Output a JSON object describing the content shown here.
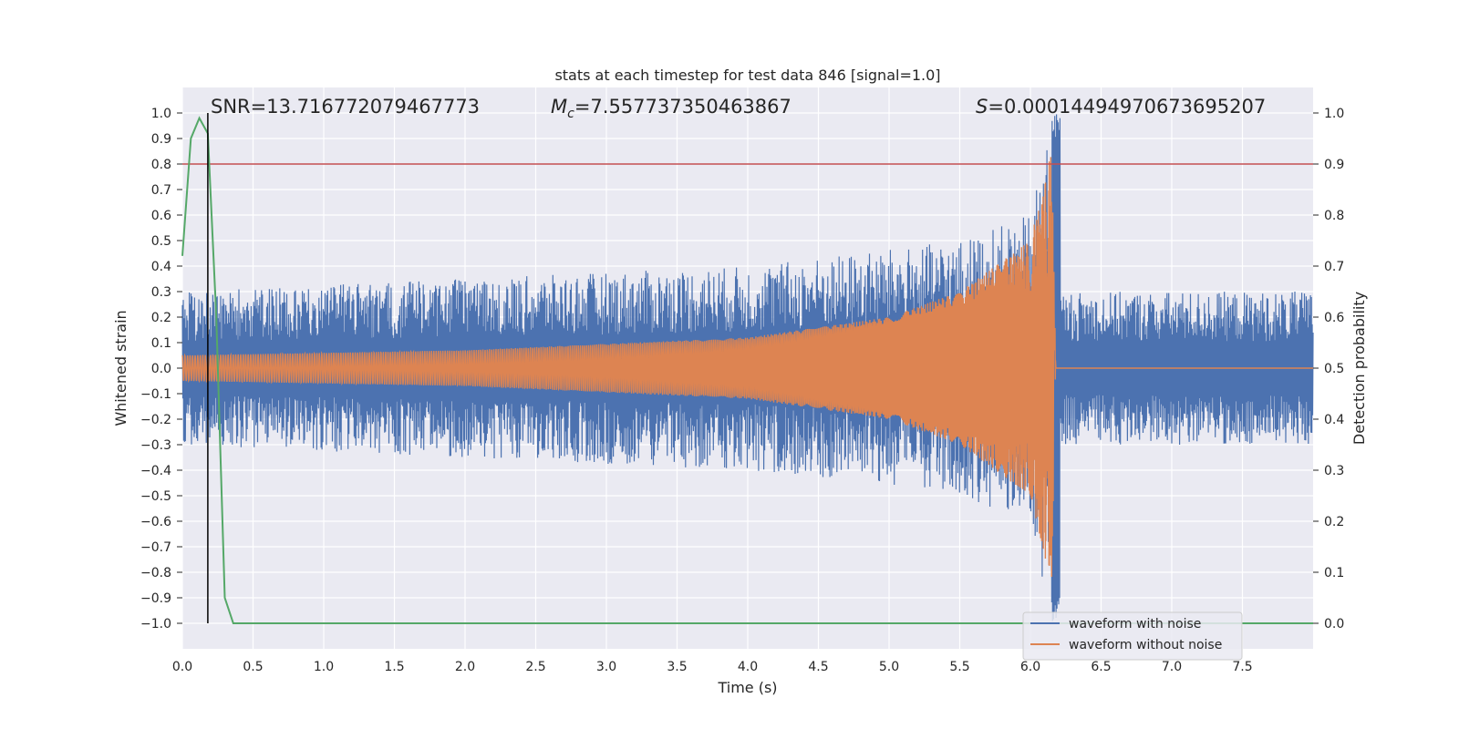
{
  "chart_data": {
    "type": "line",
    "title": "stats at each timestep for test data 846 [signal=1.0]",
    "xlabel": "Time (s)",
    "ylabel": "Whitened strain",
    "y2label": "Detection probability",
    "xlim": [
      0.0,
      8.0
    ],
    "ylim": [
      -1.1,
      1.1
    ],
    "y2lim": [
      -0.05,
      1.05
    ],
    "x_ticks": [
      "0.0",
      "0.5",
      "1.0",
      "1.5",
      "2.0",
      "2.5",
      "3.0",
      "3.5",
      "4.0",
      "4.5",
      "5.0",
      "5.5",
      "6.0",
      "6.5",
      "7.0",
      "7.5"
    ],
    "y_ticks": [
      "1.0",
      "0.9",
      "0.8",
      "0.7",
      "0.6",
      "0.5",
      "0.4",
      "0.3",
      "0.2",
      "0.1",
      "0.0",
      "−0.1",
      "−0.2",
      "−0.3",
      "−0.4",
      "−0.5",
      "−0.6",
      "−0.7",
      "−0.8",
      "−0.9",
      "−1.0"
    ],
    "y2_ticks": [
      "1.0",
      "0.9",
      "0.8",
      "0.7",
      "0.6",
      "0.5",
      "0.4",
      "0.3",
      "0.2",
      "0.1",
      "0.0"
    ],
    "grid": true,
    "legend_position": "lower-right",
    "annotations": {
      "snr_text": "SNR=13.716772079467773",
      "mc_symbol": "M",
      "mc_sub": "c",
      "mc_value": "=7.557737350463867",
      "s_symbol": "S",
      "s_value": "=0.00014494970673695207"
    },
    "threshold_line": {
      "y2": 0.9,
      "color": "#c44e52"
    },
    "detection_marker_x": 0.18,
    "merger_time": 6.18,
    "series": [
      {
        "name": "waveform with noise",
        "color": "#4c72b0",
        "axis": "left",
        "description_points": [
          [
            0.0,
            0.3
          ],
          [
            4.0,
            0.4
          ],
          [
            5.5,
            0.5
          ],
          [
            6.0,
            0.6
          ],
          [
            6.15,
            1.0
          ],
          [
            6.2,
            0.3
          ],
          [
            8.0,
            0.3
          ]
        ]
      },
      {
        "name": "waveform without noise",
        "color": "#dd8452",
        "axis": "left",
        "amplitude_envelope": [
          [
            0.0,
            0.05
          ],
          [
            2.0,
            0.07
          ],
          [
            4.0,
            0.12
          ],
          [
            5.0,
            0.2
          ],
          [
            5.5,
            0.3
          ],
          [
            6.0,
            0.5
          ],
          [
            6.15,
            0.85
          ],
          [
            6.18,
            0.0
          ]
        ]
      },
      {
        "color": "#55a868",
        "axis": "right",
        "x": [
          0.0,
          0.06,
          0.12,
          0.18,
          0.24,
          0.3,
          0.36,
          0.42,
          8.0
        ],
        "y": [
          0.72,
          0.95,
          0.99,
          0.96,
          0.6,
          0.05,
          0.0,
          0.0,
          0.0
        ]
      }
    ]
  }
}
